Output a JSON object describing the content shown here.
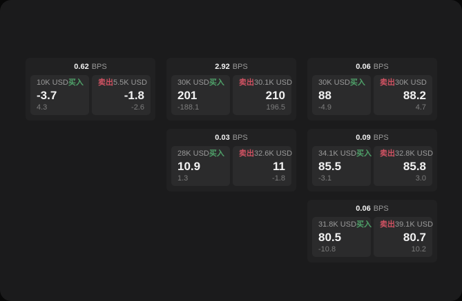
{
  "theme": {
    "page_bg": "#080808",
    "surface_bg": "#1b1b1c",
    "card_bg": "#212122",
    "panel_bg": "#2b2b2c",
    "value_color": "#f2f2f2",
    "label_color": "#9a9a9a",
    "muted_color": "#7d7d7d",
    "buy_color": "#4fa169",
    "sell_color": "#cf5262"
  },
  "labels": {
    "bps_unit": "BPS",
    "buy": "买入",
    "sell": "卖出"
  },
  "cards": [
    {
      "bps": "0.62",
      "row": 1,
      "col": 1,
      "buy": {
        "notional": "10K USD",
        "price": "-3.7",
        "delta": "4.3"
      },
      "sell": {
        "notional": "5.5K USD",
        "price": "-1.8",
        "delta": "-2.6"
      }
    },
    {
      "bps": "2.92",
      "row": 1,
      "col": 2,
      "buy": {
        "notional": "30K USD",
        "price": "201",
        "delta": "-188.1"
      },
      "sell": {
        "notional": "30.1K USD",
        "price": "210",
        "delta": "196.5"
      }
    },
    {
      "bps": "0.06",
      "row": 1,
      "col": 3,
      "buy": {
        "notional": "30K USD",
        "price": "88",
        "delta": "-4.9"
      },
      "sell": {
        "notional": "30K USD",
        "price": "88.2",
        "delta": "4.7"
      }
    },
    {
      "bps": "0.03",
      "row": 2,
      "col": 2,
      "buy": {
        "notional": "28K USD",
        "price": "10.9",
        "delta": "1.3"
      },
      "sell": {
        "notional": "32.6K USD",
        "price": "11",
        "delta": "-1.8"
      }
    },
    {
      "bps": "0.09",
      "row": 2,
      "col": 3,
      "buy": {
        "notional": "34.1K USD",
        "price": "85.5",
        "delta": "-3.1"
      },
      "sell": {
        "notional": "32.8K USD",
        "price": "85.8",
        "delta": "3.0"
      }
    },
    {
      "bps": "0.06",
      "row": 3,
      "col": 3,
      "buy": {
        "notional": "31.8K USD",
        "price": "80.5",
        "delta": "-10.8"
      },
      "sell": {
        "notional": "39.1K USD",
        "price": "80.7",
        "delta": "10.2"
      }
    }
  ]
}
